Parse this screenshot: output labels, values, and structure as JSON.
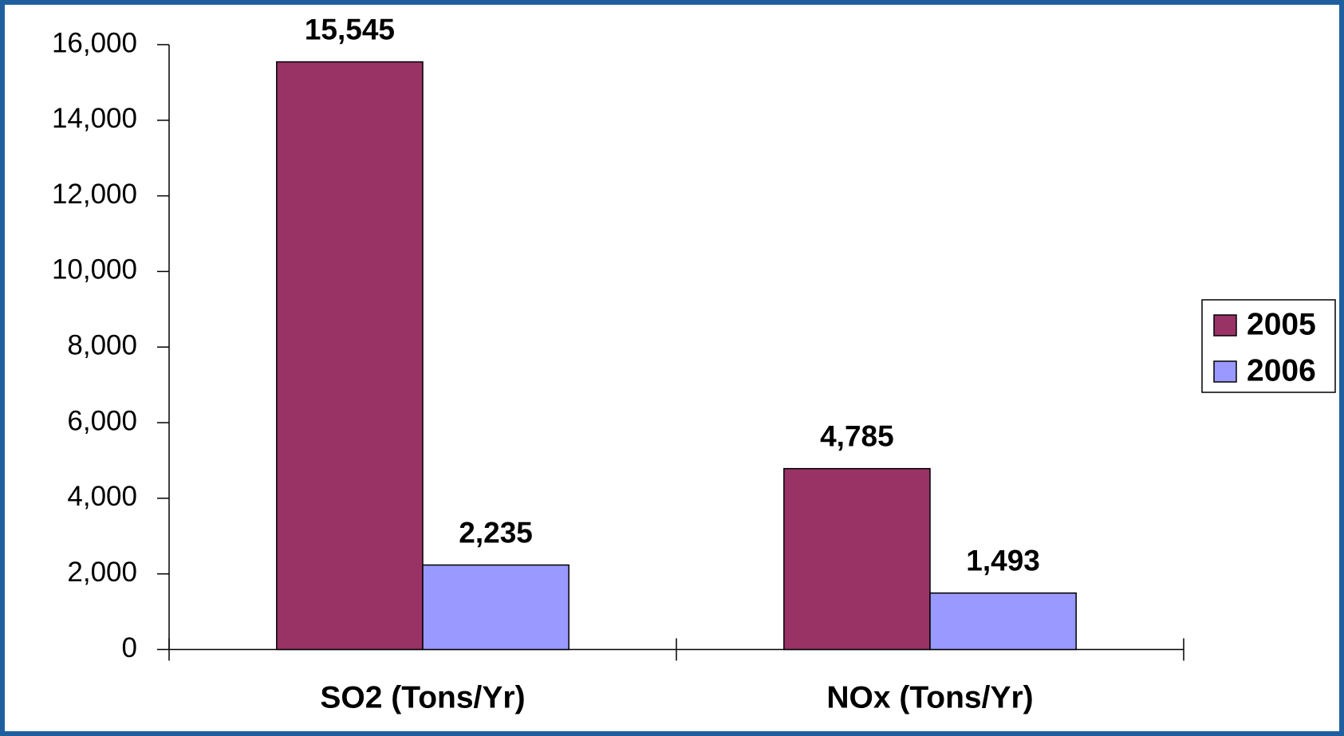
{
  "chart_data": {
    "type": "bar",
    "categories": [
      "SO2 (Tons/Yr)",
      "NOx (Tons/Yr)"
    ],
    "series": [
      {
        "name": "2005",
        "color": "#993366",
        "values": [
          15545,
          4785
        ],
        "value_labels": [
          "15,545",
          "4,785"
        ]
      },
      {
        "name": "2006",
        "color": "#9999ff",
        "values": [
          2235,
          1493
        ],
        "value_labels": [
          "2,235",
          "1,493"
        ]
      }
    ],
    "ylim": [
      0,
      16000
    ],
    "yticks": [
      0,
      {
        "value": 2000,
        "label": "2,000"
      },
      {
        "value": 4000,
        "label": "4,000"
      },
      {
        "value": 6000,
        "label": "6,000"
      },
      {
        "value": 8000,
        "label": "8,000"
      },
      {
        "value": 10000,
        "label": "10,000"
      },
      {
        "value": 12000,
        "label": "12,000"
      },
      {
        "value": 14000,
        "label": "14,000"
      },
      {
        "value": 16000,
        "label": "16,000"
      }
    ],
    "legend": "right"
  }
}
